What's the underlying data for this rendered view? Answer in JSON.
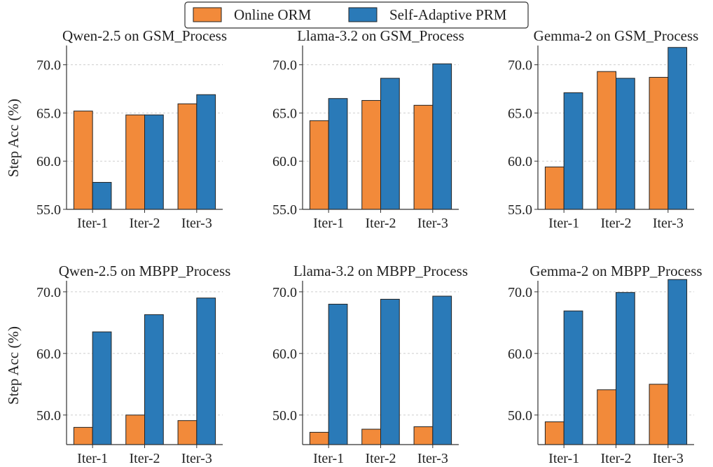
{
  "legend": {
    "placement": "top-center",
    "entries": [
      {
        "label": "Online ORM",
        "color": "#f28a3a"
      },
      {
        "label": "Self-Adaptive PRM",
        "color": "#2a7ab8"
      }
    ]
  },
  "y_axis_label": "Step Acc (%)",
  "grid": "horizontal dashed",
  "chart_data": [
    {
      "type": "bar",
      "title": "Qwen-2.5 on GSM_Process",
      "categories": [
        "Iter-1",
        "Iter-2",
        "Iter-3"
      ],
      "series": [
        {
          "name": "Online ORM",
          "values": [
            65.2,
            64.8,
            65.95
          ]
        },
        {
          "name": "Self-Adaptive PRM",
          "values": [
            57.8,
            64.8,
            66.9
          ]
        }
      ],
      "ylabel": "Step Acc (%)",
      "ylim": [
        55,
        72
      ],
      "yticks": [
        55.0,
        60.0,
        65.0,
        70.0
      ],
      "ytick_labels": [
        "55.0",
        "60.0",
        "65.0",
        "70.0"
      ]
    },
    {
      "type": "bar",
      "title": "Llama-3.2 on GSM_Process",
      "categories": [
        "Iter-1",
        "Iter-2",
        "Iter-3"
      ],
      "series": [
        {
          "name": "Online ORM",
          "values": [
            64.2,
            66.3,
            65.8
          ]
        },
        {
          "name": "Self-Adaptive PRM",
          "values": [
            66.5,
            68.6,
            70.1
          ]
        }
      ],
      "ylabel": "",
      "ylim": [
        55,
        72
      ],
      "yticks": [
        55.0,
        60.0,
        65.0,
        70.0
      ],
      "ytick_labels": [
        "55.0",
        "60.0",
        "65.0",
        "70.0"
      ]
    },
    {
      "type": "bar",
      "title": "Gemma-2 on GSM_Process",
      "categories": [
        "Iter-1",
        "Iter-2",
        "Iter-3"
      ],
      "series": [
        {
          "name": "Online ORM",
          "values": [
            59.4,
            69.3,
            68.7
          ]
        },
        {
          "name": "Self-Adaptive PRM",
          "values": [
            67.1,
            68.6,
            71.8
          ]
        }
      ],
      "ylabel": "",
      "ylim": [
        55,
        72
      ],
      "yticks": [
        55.0,
        60.0,
        65.0,
        70.0
      ],
      "ytick_labels": [
        "55.0",
        "60.0",
        "65.0",
        "70.0"
      ]
    },
    {
      "type": "bar",
      "title": "Qwen-2.5 on MBPP_Process",
      "categories": [
        "Iter-1",
        "Iter-2",
        "Iter-3"
      ],
      "series": [
        {
          "name": "Online ORM",
          "values": [
            48.0,
            50.0,
            49.1
          ]
        },
        {
          "name": "Self-Adaptive PRM",
          "values": [
            63.5,
            66.3,
            69.0
          ]
        }
      ],
      "ylabel": "Step Acc (%)",
      "ylim": [
        45.2,
        71.8
      ],
      "yticks": [
        50.0,
        60.0,
        70.0
      ],
      "ytick_labels": [
        "50.0",
        "60.0",
        "70.0"
      ]
    },
    {
      "type": "bar",
      "title": "Llama-3.2 on MBPP_Process",
      "categories": [
        "Iter-1",
        "Iter-2",
        "Iter-3"
      ],
      "series": [
        {
          "name": "Online ORM",
          "values": [
            47.2,
            47.7,
            48.1
          ]
        },
        {
          "name": "Self-Adaptive PRM",
          "values": [
            68.0,
            68.8,
            69.3
          ]
        }
      ],
      "ylabel": "",
      "ylim": [
        45.2,
        71.8
      ],
      "yticks": [
        50.0,
        60.0,
        70.0
      ],
      "ytick_labels": [
        "50.0",
        "60.0",
        "70.0"
      ]
    },
    {
      "type": "bar",
      "title": "Gemma-2 on MBPP_Process",
      "categories": [
        "Iter-1",
        "Iter-2",
        "Iter-3"
      ],
      "series": [
        {
          "name": "Online ORM",
          "values": [
            48.9,
            54.1,
            55.0
          ]
        },
        {
          "name": "Self-Adaptive PRM",
          "values": [
            66.9,
            69.9,
            72.0
          ]
        }
      ],
      "ylabel": "",
      "ylim": [
        45.2,
        71.8
      ],
      "yticks": [
        50.0,
        60.0,
        70.0
      ],
      "ytick_labels": [
        "50.0",
        "60.0",
        "70.0"
      ]
    }
  ]
}
